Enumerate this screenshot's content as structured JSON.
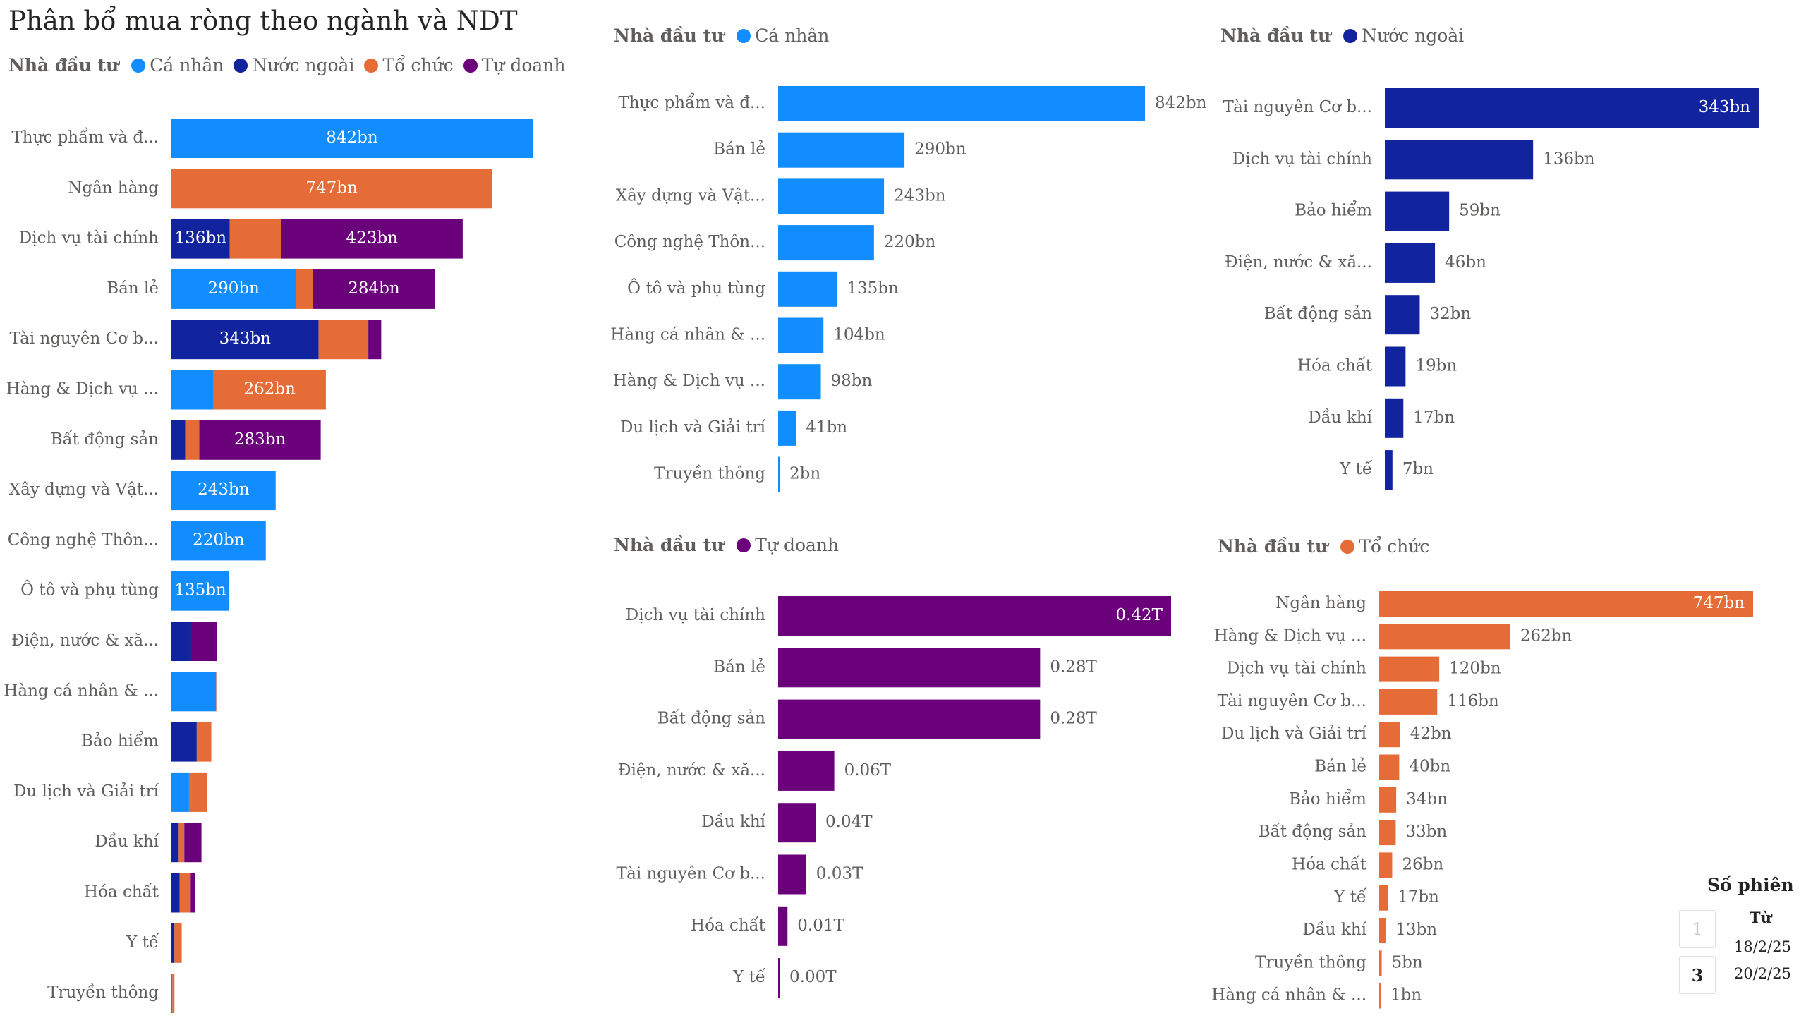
{
  "title": "Phân bổ mua ròng theo ngành và NDT",
  "legend_title": "Nhà đầu tư",
  "colors": {
    "ca_nhan": "#118dff",
    "nuoc_ngoai": "#12239e",
    "to_chuc": "#e66c37",
    "tu_doanh": "#6b007b"
  },
  "main_legend": [
    {
      "label": "Cá nhân",
      "color": "#118dff"
    },
    {
      "label": "Nước ngoài",
      "color": "#12239e"
    },
    {
      "label": "Tổ chức",
      "color": "#e66c37"
    },
    {
      "label": "Tự doanh",
      "color": "#6b007b"
    }
  ],
  "chart_data": [
    {
      "type": "bar",
      "orientation": "horizontal",
      "stacked": true,
      "title": "Phân bổ mua ròng theo ngành và NDT",
      "legend_title": "Nhà đầu tư",
      "categories": [
        "Thực phẩm và đ...",
        "Ngân hàng",
        "Dịch vụ tài chính",
        "Bán lẻ",
        "Tài nguyên Cơ b...",
        "Hàng & Dịch vụ ...",
        "Bất động sản",
        "Xây dựng và Vật...",
        "Công nghệ Thôn...",
        "Ô tô và phụ tùng",
        "Điện, nước & xă...",
        "Hàng cá nhân & ...",
        "Bảo hiểm",
        "Du lịch và Giải trí",
        "Dầu khí",
        "Hóa chất",
        "Y tế",
        "Truyền thông"
      ],
      "series": [
        {
          "name": "Cá nhân",
          "color": "#118dff",
          "values": [
            842,
            0,
            0,
            290,
            0,
            98,
            0,
            243,
            220,
            135,
            0,
            104,
            0,
            41,
            0,
            0,
            0,
            2
          ]
        },
        {
          "name": "Nước ngoài",
          "color": "#12239e",
          "values": [
            0,
            0,
            136,
            0,
            343,
            0,
            32,
            0,
            0,
            0,
            46,
            0,
            59,
            0,
            17,
            19,
            7,
            0
          ]
        },
        {
          "name": "Tổ chức",
          "color": "#e66c37",
          "values": [
            0,
            747,
            120,
            40,
            116,
            262,
            33,
            0,
            0,
            0,
            0,
            1,
            34,
            42,
            13,
            26,
            17,
            5
          ]
        },
        {
          "name": "Tự doanh",
          "color": "#6b007b",
          "values": [
            0,
            0,
            423,
            284,
            30,
            0,
            283,
            0,
            0,
            0,
            60,
            0,
            0,
            0,
            40,
            10,
            0,
            0
          ]
        }
      ],
      "labels": [
        {
          "row": 0,
          "series": 0,
          "text": "842bn"
        },
        {
          "row": 1,
          "series": 2,
          "text": "747bn"
        },
        {
          "row": 2,
          "series": 1,
          "text": "136bn"
        },
        {
          "row": 2,
          "series": 3,
          "text": "423bn"
        },
        {
          "row": 3,
          "series": 0,
          "text": "290bn"
        },
        {
          "row": 3,
          "series": 3,
          "text": "284bn"
        },
        {
          "row": 4,
          "series": 1,
          "text": "343bn"
        },
        {
          "row": 5,
          "series": 2,
          "text": "262bn"
        },
        {
          "row": 6,
          "series": 3,
          "text": "283bn"
        },
        {
          "row": 7,
          "series": 0,
          "text": "243bn"
        },
        {
          "row": 8,
          "series": 0,
          "text": "220bn"
        },
        {
          "row": 9,
          "series": 0,
          "text": "135bn"
        }
      ]
    },
    {
      "type": "bar",
      "orientation": "horizontal",
      "legend_title": "Nhà đầu tư",
      "series_name": "Cá nhân",
      "color": "#118dff",
      "categories": [
        "Thực phẩm và đ...",
        "Bán lẻ",
        "Xây dựng và Vật...",
        "Công nghệ Thôn...",
        "Ô tô và phụ tùng",
        "Hàng cá nhân & ...",
        "Hàng & Dịch vụ ...",
        "Du lịch và Giải trí",
        "Truyền thông"
      ],
      "values": [
        842,
        290,
        243,
        220,
        135,
        104,
        98,
        41,
        2
      ],
      "value_labels": [
        "842bn",
        "290bn",
        "243bn",
        "220bn",
        "135bn",
        "104bn",
        "98bn",
        "41bn",
        "2bn"
      ]
    },
    {
      "type": "bar",
      "orientation": "horizontal",
      "legend_title": "Nhà đầu tư",
      "series_name": "Nước ngoài",
      "color": "#12239e",
      "categories": [
        "Tài nguyên Cơ b...",
        "Dịch vụ tài chính",
        "Bảo hiểm",
        "Điện, nước & xă...",
        "Bất động sản",
        "Hóa chất",
        "Dầu khí",
        "Y tế"
      ],
      "values": [
        343,
        136,
        59,
        46,
        32,
        19,
        17,
        7
      ],
      "value_labels": [
        "343bn",
        "136bn",
        "59bn",
        "46bn",
        "32bn",
        "19bn",
        "17bn",
        "7bn"
      ]
    },
    {
      "type": "bar",
      "orientation": "horizontal",
      "legend_title": "Nhà đầu tư",
      "series_name": "Tự doanh",
      "color": "#6b007b",
      "categories": [
        "Dịch vụ tài chính",
        "Bán lẻ",
        "Bất động sản",
        "Điện, nước & xă...",
        "Dầu khí",
        "Tài nguyên Cơ b...",
        "Hóa chất",
        "Y tế"
      ],
      "values": [
        0.42,
        0.28,
        0.28,
        0.06,
        0.04,
        0.03,
        0.01,
        0.0
      ],
      "value_labels": [
        "0.42T",
        "0.28T",
        "0.28T",
        "0.06T",
        "0.04T",
        "0.03T",
        "0.01T",
        "0.00T"
      ]
    },
    {
      "type": "bar",
      "orientation": "horizontal",
      "legend_title": "Nhà đầu tư",
      "series_name": "Tổ chức",
      "color": "#e66c37",
      "categories": [
        "Ngân hàng",
        "Hàng & Dịch vụ ...",
        "Dịch vụ tài chính",
        "Tài nguyên Cơ b...",
        "Du lịch và Giải trí",
        "Bán lẻ",
        "Bảo hiểm",
        "Bất động sản",
        "Hóa chất",
        "Y tế",
        "Dầu khí",
        "Truyền thông",
        "Hàng cá nhân & ..."
      ],
      "values": [
        747,
        262,
        120,
        116,
        42,
        40,
        34,
        33,
        26,
        17,
        13,
        5,
        1
      ],
      "value_labels": [
        "747bn",
        "262bn",
        "120bn",
        "116bn",
        "42bn",
        "40bn",
        "34bn",
        "33bn",
        "26bn",
        "17bn",
        "13bn",
        "5bn",
        "1bn"
      ]
    }
  ],
  "session": {
    "title": "Số phiên",
    "from_value": "1",
    "to_value": "3",
    "from_label": "Từ",
    "from_date": "18/2/25",
    "to_date": "20/2/25"
  }
}
